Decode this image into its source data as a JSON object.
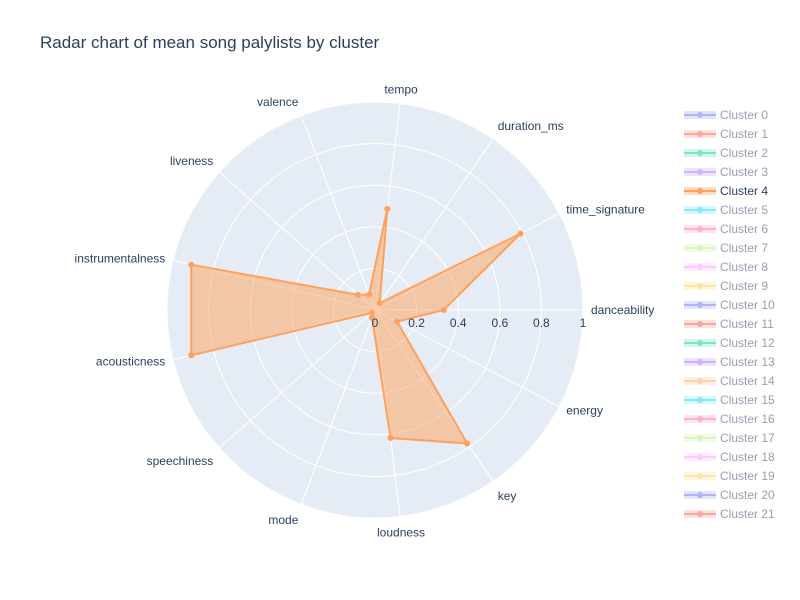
{
  "chart_data": {
    "type": "radar",
    "title": "Radar chart of mean song palylists by cluster",
    "theta": [
      "danceability",
      "energy",
      "key",
      "loudness",
      "mode",
      "speechiness",
      "acousticness",
      "instrumentalness",
      "liveness",
      "valence",
      "tempo",
      "duration_ms",
      "time_signature"
    ],
    "radial_range": [
      0,
      1
    ],
    "radial_ticks": [
      "0",
      "0.2",
      "0.4",
      "0.6",
      "0.8",
      "1"
    ],
    "series": [
      {
        "name": "Cluster 0",
        "color": "#636efa",
        "visible": false
      },
      {
        "name": "Cluster 1",
        "color": "#EF553B",
        "visible": false
      },
      {
        "name": "Cluster 2",
        "color": "#00cc96",
        "visible": false
      },
      {
        "name": "Cluster 3",
        "color": "#ab63fa",
        "visible": false
      },
      {
        "name": "Cluster 4",
        "color": "#FFA15A",
        "visible": true,
        "values": [
          0.33,
          0.12,
          0.78,
          0.62,
          0.04,
          0.02,
          0.91,
          0.91,
          0.11,
          0.08,
          0.49,
          0.04,
          0.79
        ]
      },
      {
        "name": "Cluster 5",
        "color": "#19d3f3",
        "visible": false
      },
      {
        "name": "Cluster 6",
        "color": "#FF6692",
        "visible": false
      },
      {
        "name": "Cluster 7",
        "color": "#B6E880",
        "visible": false
      },
      {
        "name": "Cluster 8",
        "color": "#FF97FF",
        "visible": false
      },
      {
        "name": "Cluster 9",
        "color": "#FECB52",
        "visible": false
      },
      {
        "name": "Cluster 10",
        "color": "#636efa",
        "visible": false
      },
      {
        "name": "Cluster 11",
        "color": "#EF553B",
        "visible": false
      },
      {
        "name": "Cluster 12",
        "color": "#00cc96",
        "visible": false
      },
      {
        "name": "Cluster 13",
        "color": "#ab63fa",
        "visible": false
      },
      {
        "name": "Cluster 14",
        "color": "#FFA15A",
        "visible": false
      },
      {
        "name": "Cluster 15",
        "color": "#19d3f3",
        "visible": false
      },
      {
        "name": "Cluster 16",
        "color": "#FF6692",
        "visible": false
      },
      {
        "name": "Cluster 17",
        "color": "#B6E880",
        "visible": false
      },
      {
        "name": "Cluster 18",
        "color": "#FF97FF",
        "visible": false
      },
      {
        "name": "Cluster 19",
        "color": "#FECB52",
        "visible": false
      },
      {
        "name": "Cluster 20",
        "color": "#636efa",
        "visible": false
      },
      {
        "name": "Cluster 21",
        "color": "#EF553B",
        "visible": false
      }
    ],
    "legend_position": "right",
    "grid": true,
    "background_color": "#e5ecf6"
  }
}
